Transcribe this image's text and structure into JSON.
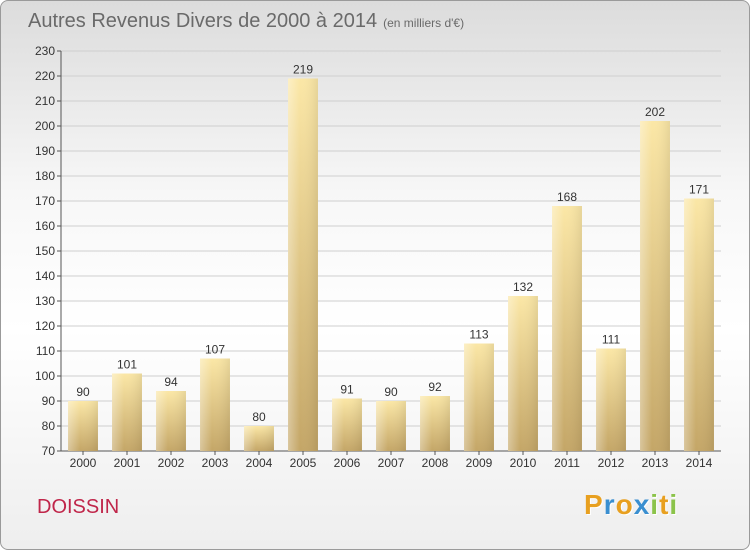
{
  "title": "Autres Revenus Divers de 2000 à 2014",
  "title_unit": "(en milliers d'€)",
  "commune": "DOISSIN",
  "brand": {
    "text": "Proxiti",
    "letters": [
      "P",
      "r",
      "o",
      "x",
      "i",
      "t",
      "i"
    ],
    "colors": [
      "#e8a020",
      "#3a8fd0",
      "#e8a020",
      "#3a8fd0",
      "#8bc34a",
      "#e8a020",
      "#8bc34a"
    ]
  },
  "chart_data": {
    "type": "bar",
    "categories": [
      "2000",
      "2001",
      "2002",
      "2003",
      "2004",
      "2005",
      "2006",
      "2007",
      "2008",
      "2009",
      "2010",
      "2011",
      "2012",
      "2013",
      "2014"
    ],
    "values": [
      90,
      101,
      94,
      107,
      80,
      219,
      91,
      90,
      92,
      113,
      132,
      168,
      111,
      202,
      171
    ],
    "ylim": [
      70,
      230
    ],
    "yticks": [
      70,
      80,
      90,
      100,
      110,
      120,
      130,
      140,
      150,
      160,
      170,
      180,
      190,
      200,
      210,
      220,
      230
    ],
    "grid": true,
    "bar_color_light": "#fbe7a6",
    "bar_color_dark": "#c4a667"
  }
}
